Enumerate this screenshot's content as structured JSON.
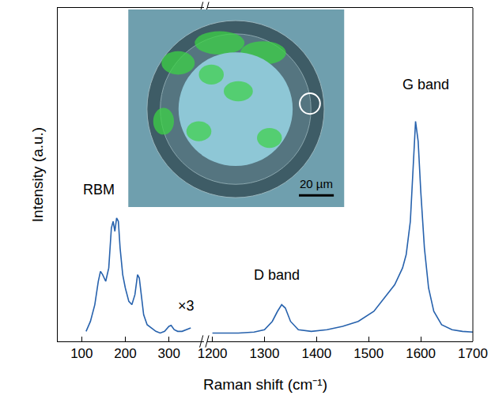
{
  "chart_data": [
    {
      "type": "line",
      "x_label": "Raman shift (cm⁻¹)",
      "y_label": "Intensity (a.u.)",
      "inset_label": "20 µm",
      "color": "#2762ad",
      "grid": false,
      "tick_labels": "x",
      "xlim": [
        45,
        380
      ],
      "xticks": [
        100,
        200,
        300
      ],
      "ylim": [
        0,
        1
      ],
      "x": [
        110,
        120,
        130,
        138,
        143,
        148,
        155,
        162,
        168,
        172,
        176,
        180,
        184,
        188,
        194,
        200,
        208,
        215,
        222,
        228,
        232,
        236,
        242,
        250,
        260,
        270,
        280,
        290,
        300,
        305,
        312,
        320,
        330,
        340,
        350
      ],
      "values": [
        0.03,
        0.06,
        0.11,
        0.18,
        0.21,
        0.2,
        0.18,
        0.22,
        0.34,
        0.36,
        0.33,
        0.37,
        0.36,
        0.28,
        0.2,
        0.16,
        0.12,
        0.11,
        0.14,
        0.2,
        0.19,
        0.14,
        0.08,
        0.05,
        0.04,
        0.03,
        0.025,
        0.03,
        0.045,
        0.048,
        0.035,
        0.03,
        0.03,
        0.035,
        0.04
      ],
      "annotations": [
        {
          "text": "RBM",
          "x": 140,
          "y": 0.455
        },
        {
          "text": "×3",
          "x": 340,
          "y": 0.107
        }
      ]
    },
    {
      "type": "line",
      "color": "#2762ad",
      "grid": false,
      "tick_labels": "x",
      "xlim": [
        1190,
        1700
      ],
      "xticks": [
        1200,
        1300,
        1400,
        1500,
        1600,
        1700
      ],
      "ylim": [
        0,
        1
      ],
      "x": [
        1200,
        1250,
        1280,
        1300,
        1315,
        1325,
        1333,
        1340,
        1350,
        1365,
        1390,
        1420,
        1450,
        1480,
        1510,
        1530,
        1550,
        1565,
        1572,
        1580,
        1585,
        1590,
        1595,
        1600,
        1607,
        1615,
        1625,
        1640,
        1660,
        1680,
        1700
      ],
      "values": [
        0.025,
        0.025,
        0.028,
        0.035,
        0.06,
        0.09,
        0.11,
        0.1,
        0.06,
        0.035,
        0.03,
        0.035,
        0.045,
        0.06,
        0.09,
        0.13,
        0.17,
        0.22,
        0.26,
        0.36,
        0.52,
        0.66,
        0.6,
        0.45,
        0.28,
        0.16,
        0.09,
        0.05,
        0.035,
        0.03,
        0.028
      ],
      "annotations": [
        {
          "text": "D band",
          "x": 1324,
          "y": 0.2
        },
        {
          "text": "G band",
          "x": 1609,
          "y": 0.77
        }
      ]
    }
  ]
}
